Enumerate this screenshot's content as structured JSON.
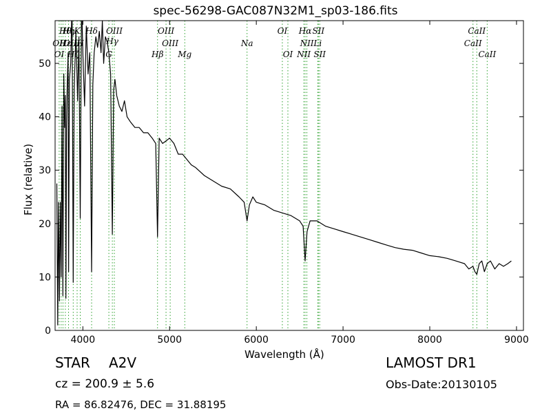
{
  "chart_data": {
    "type": "line",
    "title": "spec-56298-GAC087N32M1_sp03-186.fits",
    "xlabel": "Wavelength (Å)",
    "ylabel": "Flux (relative)",
    "xlim": [
      3680,
      9080
    ],
    "ylim": [
      0,
      58
    ],
    "xticks": [
      4000,
      5000,
      6000,
      7000,
      8000,
      9000
    ],
    "yticks": [
      0,
      10,
      20,
      30,
      40,
      50
    ],
    "grid": false,
    "line_color": "#000000",
    "marker_color": "#2ca02c",
    "series": [
      {
        "x": [
          3700,
          3710,
          3720,
          3730,
          3740,
          3750,
          3760,
          3770,
          3780,
          3790,
          3798,
          3805,
          3812,
          3820,
          3830,
          3836,
          3845,
          3860,
          3875,
          3889,
          3900,
          3920,
          3940,
          3955,
          3970,
          3985,
          4000,
          4020,
          4040,
          4060,
          4080,
          4101,
          4115,
          4130,
          4150,
          4170,
          4190,
          4210,
          4225,
          4240,
          4260,
          4280,
          4300,
          4320,
          4340,
          4355,
          4370,
          4390,
          4420,
          4450,
          4480,
          4510,
          4550,
          4600,
          4650,
          4700,
          4750,
          4800,
          4840,
          4861,
          4880,
          4920,
          4960,
          5000,
          5050,
          5100,
          5150,
          5200,
          5250,
          5300,
          5400,
          5500,
          5600,
          5700,
          5800,
          5860,
          5893,
          5920,
          5960,
          6000,
          6100,
          6200,
          6300,
          6400,
          6500,
          6540,
          6563,
          6585,
          6620,
          6700,
          6800,
          6900,
          7000,
          7100,
          7200,
          7300,
          7400,
          7500,
          7600,
          7700,
          7800,
          7900,
          8000,
          8100,
          8200,
          8300,
          8400,
          8450,
          8498,
          8520,
          8542,
          8570,
          8600,
          8630,
          8662,
          8700,
          8750,
          8800,
          8850,
          8900,
          8940
        ],
        "y": [
          27.5,
          1,
          24,
          5.5,
          24,
          10,
          42,
          6.5,
          48,
          38,
          44,
          6,
          38,
          46,
          52,
          11,
          47,
          50,
          62,
          9,
          45,
          56,
          43,
          55,
          21,
          62,
          52,
          42,
          57,
          48,
          52,
          11,
          46,
          52,
          55,
          53,
          56,
          52,
          58,
          50,
          55,
          54,
          52,
          48,
          18,
          45,
          47,
          44,
          42,
          41,
          43,
          40,
          39,
          38,
          38,
          37,
          37,
          36,
          35,
          17.5,
          36,
          35,
          35.5,
          36,
          35,
          33,
          33,
          32,
          31,
          30.5,
          29,
          28,
          27,
          26.5,
          25,
          24,
          20.5,
          23.5,
          25,
          24,
          23.5,
          22.5,
          22,
          21.5,
          20.5,
          19.5,
          13,
          18.5,
          20.5,
          20.5,
          19.5,
          19,
          18.5,
          18,
          17.5,
          17,
          16.5,
          16,
          15.5,
          15.2,
          15,
          14.5,
          14,
          13.8,
          13.5,
          13,
          12.5,
          11.5,
          12,
          11,
          10.5,
          12.5,
          13,
          11,
          12.5,
          13,
          11.5,
          12.5,
          12,
          12.5,
          13
        ]
      }
    ],
    "line_markers": [
      3727,
      3750,
      3771,
      3798,
      3835,
      3889,
      3934,
      3970,
      4101,
      4300,
      4340,
      4363,
      4861,
      4959,
      5007,
      5175,
      5893,
      6300,
      6364,
      6548,
      6563,
      6583,
      6708,
      6716,
      6731,
      8498,
      8542,
      8662
    ],
    "line_labels": [
      {
        "text": "Hθ",
        "x": 3798,
        "row": 1
      },
      {
        "text": "Hη",
        "x": 3835,
        "row": 1
      },
      {
        "text": "K",
        "x": 3934,
        "row": 1
      },
      {
        "text": "Hδ",
        "x": 4101,
        "row": 1
      },
      {
        "text": "OIII",
        "x": 4363,
        "row": 1
      },
      {
        "text": "OIII",
        "x": 4959,
        "row": 1
      },
      {
        "text": "OI",
        "x": 6300,
        "row": 1
      },
      {
        "text": "Hα",
        "x": 6563,
        "row": 1
      },
      {
        "text": "SII",
        "x": 6716,
        "row": 1
      },
      {
        "text": "CaII",
        "x": 8542,
        "row": 1
      },
      {
        "text": "Hγ",
        "x": 4340,
        "row": 2
      },
      {
        "text": "OII",
        "x": 3727,
        "row": 3
      },
      {
        "text": "Hε",
        "x": 3800,
        "row": 3
      },
      {
        "text": "OIII",
        "x": 3871,
        "row": 3
      },
      {
        "text": "H",
        "x": 3970,
        "row": 3
      },
      {
        "text": "OIII",
        "x": 5007,
        "row": 3
      },
      {
        "text": "Na",
        "x": 5893,
        "row": 3
      },
      {
        "text": "NII",
        "x": 6583,
        "row": 3
      },
      {
        "text": "Li",
        "x": 6708,
        "row": 3
      },
      {
        "text": "CaII",
        "x": 8498,
        "row": 3
      },
      {
        "text": "OI",
        "x": 3727,
        "row": 4
      },
      {
        "text": "Hζ",
        "x": 3889,
        "row": 4
      },
      {
        "text": "G",
        "x": 4300,
        "row": 4
      },
      {
        "text": "Hβ",
        "x": 4861,
        "row": 4
      },
      {
        "text": "Mg",
        "x": 5175,
        "row": 4
      },
      {
        "text": "OI",
        "x": 6364,
        "row": 4
      },
      {
        "text": "NII",
        "x": 6548,
        "row": 4
      },
      {
        "text": "SII",
        "x": 6731,
        "row": 4
      },
      {
        "text": "CaII",
        "x": 8662,
        "row": 4
      }
    ]
  },
  "info": {
    "object_type": "STAR",
    "subclass": "A2V",
    "survey": "LAMOST DR1",
    "cz": "cz = 200.9 ± 5.6",
    "obs_date": "Obs-Date:20130105",
    "radec": "RA = 86.82476, DEC = 31.88195"
  }
}
